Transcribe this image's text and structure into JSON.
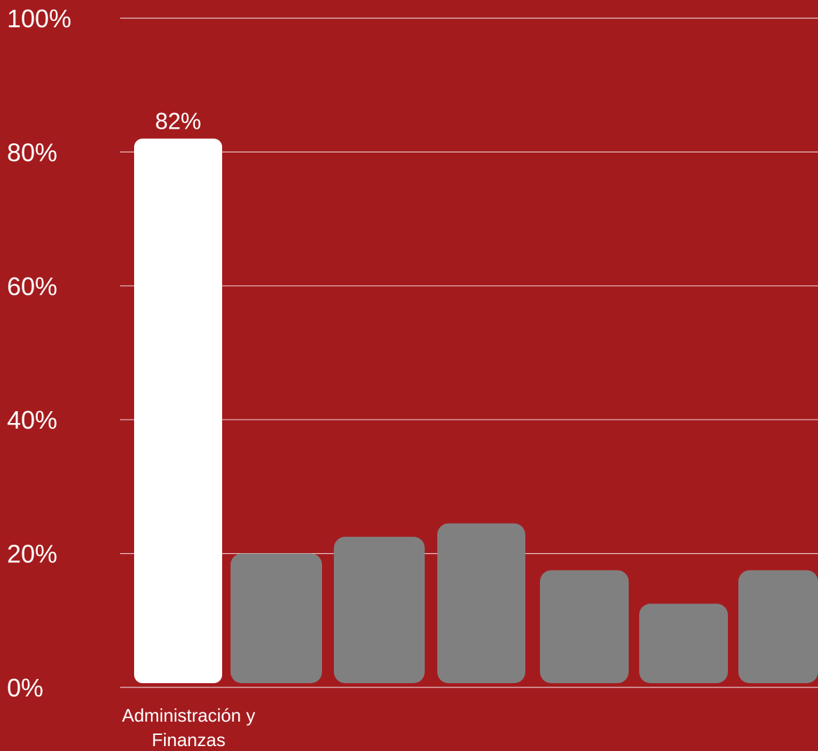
{
  "colors": {
    "background": "#A41B1E",
    "highlight_bar": "#FFFFFF",
    "other_bars": "#808080",
    "gridline": "#E8C9CA",
    "text": "#FFFFFF"
  },
  "chart_data": {
    "type": "bar",
    "title": "",
    "xlabel": "",
    "ylabel": "",
    "ylim": [
      0,
      100
    ],
    "y_ticks": [
      "0%",
      "20%",
      "40%",
      "60%",
      "80%",
      "100%"
    ],
    "categories": [
      "Administración y Finanzas",
      "",
      "",
      "",
      "",
      "",
      ""
    ],
    "values": [
      82,
      20,
      22.5,
      24.5,
      17.5,
      12.5,
      17.5
    ],
    "highlight_index": 0,
    "data_labels": [
      "82%",
      "",
      "",
      "",
      "",
      "",
      ""
    ],
    "grid": true
  }
}
